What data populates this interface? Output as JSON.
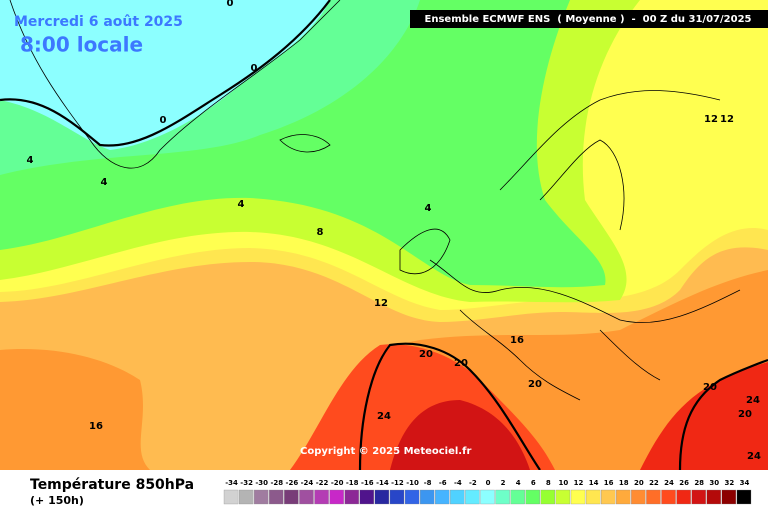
{
  "header": {
    "date": "Mercredi 6 août 2025",
    "time": "8:00 locale",
    "model": "Ensemble ECMWF ENS  ( Moyenne )  -  00 Z du 31/07/2025"
  },
  "contour_labels": [
    0,
    0,
    0,
    4,
    4,
    4,
    4,
    8,
    12,
    16,
    16,
    20,
    20,
    20,
    20,
    20,
    24,
    24,
    24,
    12,
    12
  ],
  "copyright": "Copyright © 2025 Meteociel.fr",
  "footer": {
    "title": "Température 850hPa",
    "lead": "(+ 150h)"
  },
  "legend": {
    "items": [
      {
        "value": -34,
        "color": "#d2d2d2"
      },
      {
        "value": -32,
        "color": "#b4b4b4"
      },
      {
        "value": -30,
        "color": "#a07ca0"
      },
      {
        "value": -28,
        "color": "#8c5a8c"
      },
      {
        "value": -26,
        "color": "#783c78"
      },
      {
        "value": -24,
        "color": "#a050a0"
      },
      {
        "value": -22,
        "color": "#b43cb4"
      },
      {
        "value": -20,
        "color": "#c828c8"
      },
      {
        "value": -18,
        "color": "#8c2896"
      },
      {
        "value": -16,
        "color": "#50148c"
      },
      {
        "value": -14,
        "color": "#2828a0"
      },
      {
        "value": -12,
        "color": "#2846c8"
      },
      {
        "value": -10,
        "color": "#3264e6"
      },
      {
        "value": -8,
        "color": "#3c96f0"
      },
      {
        "value": -6,
        "color": "#46b4ff"
      },
      {
        "value": -4,
        "color": "#50d2ff"
      },
      {
        "value": -2,
        "color": "#64ebff"
      },
      {
        "value": 0,
        "color": "#8cffff"
      },
      {
        "value": 2,
        "color": "#6effc8"
      },
      {
        "value": 4,
        "color": "#64ff96"
      },
      {
        "value": 6,
        "color": "#64ff64"
      },
      {
        "value": 8,
        "color": "#96ff32"
      },
      {
        "value": 10,
        "color": "#c8ff32"
      },
      {
        "value": 12,
        "color": "#ffff50"
      },
      {
        "value": 14,
        "color": "#ffe650"
      },
      {
        "value": 16,
        "color": "#ffc850"
      },
      {
        "value": 18,
        "color": "#ffaa3c"
      },
      {
        "value": 20,
        "color": "#ff8c32"
      },
      {
        "value": 22,
        "color": "#ff6e28"
      },
      {
        "value": 24,
        "color": "#ff4b1e"
      },
      {
        "value": 26,
        "color": "#f02814"
      },
      {
        "value": 28,
        "color": "#d21414"
      },
      {
        "value": 30,
        "color": "#b40a0a"
      },
      {
        "value": 32,
        "color": "#8c0000"
      },
      {
        "value": 34,
        "color": "#000000"
      }
    ]
  }
}
